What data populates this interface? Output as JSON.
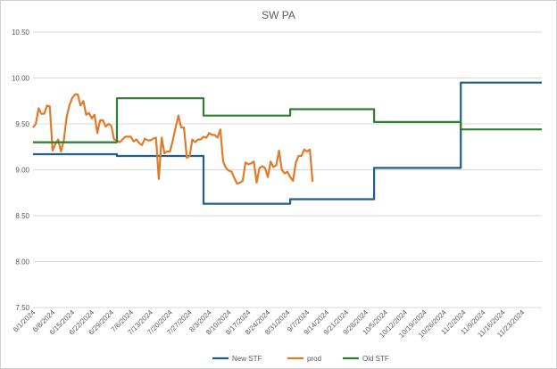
{
  "chart_data": {
    "type": "line",
    "title": "SW PA",
    "xlabel": "",
    "ylabel": "",
    "ylim": [
      7.5,
      10.5
    ],
    "yticks": [
      "7.50",
      "8.00",
      "8.50",
      "9.00",
      "9.50",
      "10.00",
      "10.50"
    ],
    "grid": true,
    "legend": "bottom",
    "x_range": [
      "6/1/2024",
      "11/30/2024"
    ],
    "x_tick_labels": [
      "6/1/2024",
      "6/8/2024",
      "6/15/2024",
      "6/22/2024",
      "6/29/2024",
      "7/6/2024",
      "7/13/2024",
      "7/20/2024",
      "7/27/2024",
      "8/3/2024",
      "8/10/2024",
      "8/17/2024",
      "8/24/2024",
      "8/31/2024",
      "9/7/2024",
      "9/14/2024",
      "9/21/2024",
      "9/28/2024",
      "10/5/2024",
      "10/12/2024",
      "10/19/2024",
      "10/26/2024",
      "11/2/2024",
      "11/9/2024",
      "11/16/2024",
      "11/23/2024"
    ],
    "series": [
      {
        "name": "New STF",
        "color": "#1f5f87",
        "points": [
          [
            "6/1/2024",
            9.17
          ],
          [
            "7/1/2024",
            9.17
          ],
          [
            "7/1/2024",
            9.15
          ],
          [
            "8/1/2024",
            9.15
          ],
          [
            "8/1/2024",
            8.63
          ],
          [
            "9/1/2024",
            8.63
          ],
          [
            "9/1/2024",
            8.68
          ],
          [
            "10/1/2024",
            8.68
          ],
          [
            "10/1/2024",
            9.02
          ],
          [
            "11/1/2024",
            9.02
          ],
          [
            "11/1/2024",
            9.95
          ],
          [
            "11/30/2024",
            9.95
          ]
        ]
      },
      {
        "name": "prod",
        "color": "#e07b2c",
        "points": [
          [
            "6/1/2024",
            9.46
          ],
          [
            "6/2/2024",
            9.5
          ],
          [
            "6/3/2024",
            9.67
          ],
          [
            "6/4/2024",
            9.61
          ],
          [
            "6/5/2024",
            9.61
          ],
          [
            "6/6/2024",
            9.7
          ],
          [
            "6/7/2024",
            9.69
          ],
          [
            "6/8/2024",
            9.21
          ],
          [
            "6/9/2024",
            9.28
          ],
          [
            "6/10/2024",
            9.33
          ],
          [
            "6/11/2024",
            9.2
          ],
          [
            "6/12/2024",
            9.32
          ],
          [
            "6/13/2024",
            9.57
          ],
          [
            "6/14/2024",
            9.7
          ],
          [
            "6/15/2024",
            9.78
          ],
          [
            "6/16/2024",
            9.82
          ],
          [
            "6/17/2024",
            9.82
          ],
          [
            "6/18/2024",
            9.7
          ],
          [
            "6/19/2024",
            9.75
          ],
          [
            "6/20/2024",
            9.6
          ],
          [
            "6/21/2024",
            9.62
          ],
          [
            "6/22/2024",
            9.56
          ],
          [
            "6/23/2024",
            9.6
          ],
          [
            "6/24/2024",
            9.4
          ],
          [
            "6/25/2024",
            9.54
          ],
          [
            "6/26/2024",
            9.54
          ],
          [
            "6/27/2024",
            9.47
          ],
          [
            "6/28/2024",
            9.5
          ],
          [
            "6/29/2024",
            9.48
          ],
          [
            "6/30/2024",
            9.33
          ],
          [
            "7/1/2024",
            9.32
          ],
          [
            "7/2/2024",
            9.3
          ],
          [
            "7/3/2024",
            9.33
          ],
          [
            "7/4/2024",
            9.36
          ],
          [
            "7/5/2024",
            9.36
          ],
          [
            "7/6/2024",
            9.36
          ],
          [
            "7/7/2024",
            9.31
          ],
          [
            "7/8/2024",
            9.33
          ],
          [
            "7/9/2024",
            9.29
          ],
          [
            "7/10/2024",
            9.27
          ],
          [
            "7/11/2024",
            9.34
          ],
          [
            "7/12/2024",
            9.32
          ],
          [
            "7/13/2024",
            9.32
          ],
          [
            "7/14/2024",
            9.34
          ],
          [
            "7/15/2024",
            9.35
          ],
          [
            "7/16/2024",
            8.9
          ],
          [
            "7/17/2024",
            9.35
          ],
          [
            "7/18/2024",
            9.18
          ],
          [
            "7/19/2024",
            9.2
          ],
          [
            "7/20/2024",
            9.2
          ],
          [
            "7/21/2024",
            9.32
          ],
          [
            "7/22/2024",
            9.46
          ],
          [
            "7/23/2024",
            9.59
          ],
          [
            "7/24/2024",
            9.46
          ],
          [
            "7/25/2024",
            9.46
          ],
          [
            "7/26/2024",
            9.13
          ],
          [
            "7/27/2024",
            9.15
          ],
          [
            "7/28/2024",
            9.33
          ],
          [
            "7/29/2024",
            9.3
          ],
          [
            "7/30/2024",
            9.33
          ],
          [
            "7/31/2024",
            9.33
          ],
          [
            "8/1/2024",
            9.36
          ],
          [
            "8/2/2024",
            9.35
          ],
          [
            "8/3/2024",
            9.4
          ],
          [
            "8/4/2024",
            9.38
          ],
          [
            "8/5/2024",
            9.38
          ],
          [
            "8/6/2024",
            9.35
          ],
          [
            "8/7/2024",
            9.44
          ],
          [
            "8/8/2024",
            9.09
          ],
          [
            "8/9/2024",
            9.02
          ],
          [
            "8/10/2024",
            8.99
          ],
          [
            "8/11/2024",
            8.98
          ],
          [
            "8/12/2024",
            8.91
          ],
          [
            "8/13/2024",
            8.85
          ],
          [
            "8/14/2024",
            8.86
          ],
          [
            "8/15/2024",
            8.88
          ],
          [
            "8/16/2024",
            9.08
          ],
          [
            "8/17/2024",
            9.06
          ],
          [
            "8/18/2024",
            9.07
          ],
          [
            "8/19/2024",
            9.09
          ],
          [
            "8/20/2024",
            8.86
          ],
          [
            "8/21/2024",
            9.02
          ],
          [
            "8/22/2024",
            9.04
          ],
          [
            "8/23/2024",
            9.02
          ],
          [
            "8/24/2024",
            8.92
          ],
          [
            "8/25/2024",
            9.09
          ],
          [
            "8/26/2024",
            9.03
          ],
          [
            "8/27/2024",
            9.05
          ],
          [
            "8/28/2024",
            9.21
          ],
          [
            "8/29/2024",
            9.0
          ],
          [
            "8/30/2024",
            8.96
          ],
          [
            "8/31/2024",
            8.98
          ],
          [
            "9/1/2024",
            8.92
          ],
          [
            "9/2/2024",
            8.88
          ],
          [
            "9/3/2024",
            9.08
          ],
          [
            "9/4/2024",
            9.15
          ],
          [
            "9/5/2024",
            9.15
          ],
          [
            "9/6/2024",
            9.22
          ],
          [
            "9/7/2024",
            9.2
          ],
          [
            "9/8/2024",
            9.22
          ],
          [
            "9/9/2024",
            8.87
          ]
        ]
      },
      {
        "name": "Old STF",
        "color": "#2e7d32",
        "points": [
          [
            "6/1/2024",
            9.3
          ],
          [
            "7/1/2024",
            9.3
          ],
          [
            "7/1/2024",
            9.78
          ],
          [
            "8/1/2024",
            9.78
          ],
          [
            "8/1/2024",
            9.59
          ],
          [
            "9/1/2024",
            9.59
          ],
          [
            "9/1/2024",
            9.66
          ],
          [
            "10/1/2024",
            9.66
          ],
          [
            "10/1/2024",
            9.52
          ],
          [
            "11/1/2024",
            9.52
          ],
          [
            "11/1/2024",
            9.44
          ],
          [
            "11/30/2024",
            9.44
          ]
        ]
      }
    ]
  }
}
